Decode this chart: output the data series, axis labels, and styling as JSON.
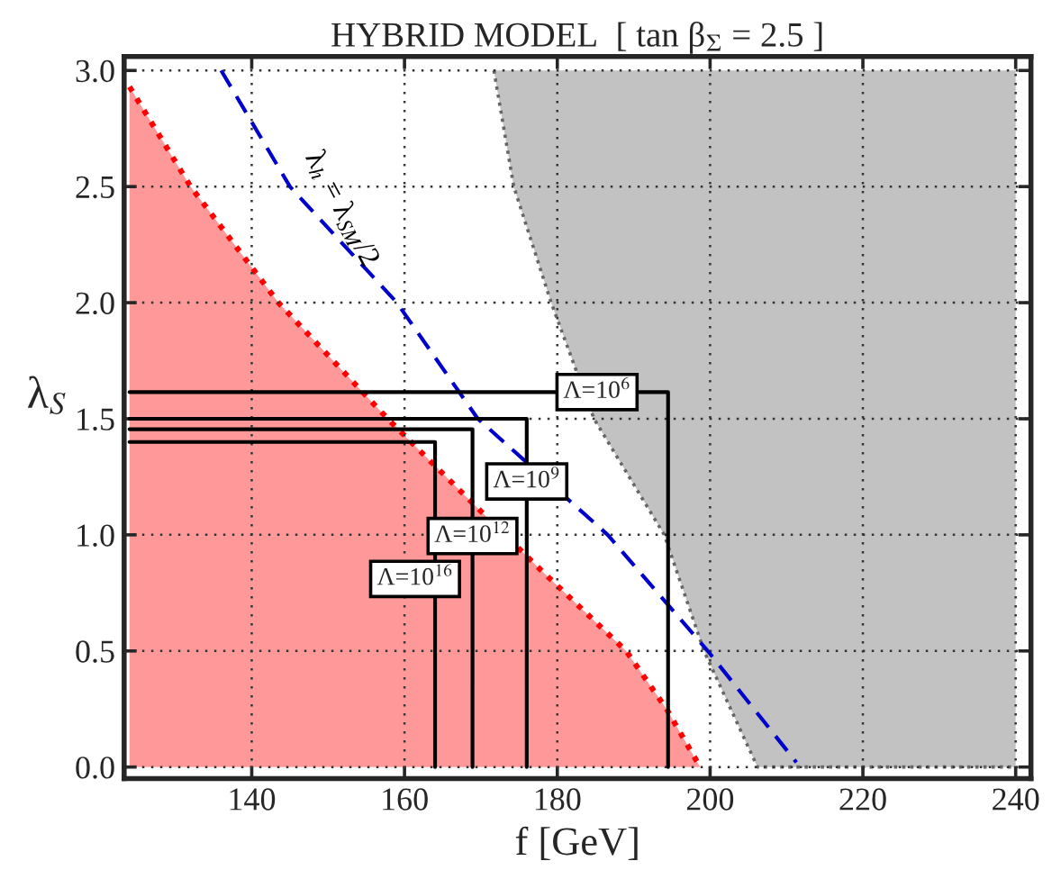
{
  "chart_data": {
    "type": "line",
    "title": "HYBRID MODEL  [ tan β$_{Σ}$ = 2.5 ]",
    "xlabel": "f [GeV]",
    "ylabel": "λ$_{S}$",
    "xlim": [
      123.3,
      242
    ],
    "ylim": [
      -0.05,
      3.06
    ],
    "xticks": [
      140,
      160,
      180,
      200,
      220,
      240
    ],
    "yticks": [
      {
        "value": 0,
        "label": "0.0"
      },
      {
        "value": 0.5,
        "label": "0.5"
      },
      {
        "value": 1,
        "label": "1.0"
      },
      {
        "value": 1.5,
        "label": "1.5"
      },
      {
        "value": 2,
        "label": "2.0"
      },
      {
        "value": 2.5,
        "label": "2.5"
      },
      {
        "value": 3,
        "label": "3.0"
      }
    ],
    "grid": true,
    "marker": "none",
    "series": [
      {
        "color": "#666666",
        "line_style": "dotted",
        "x": [
          171.7,
          174.3,
          179.2,
          184.8,
          194,
          199.2,
          206.2,
          240
        ],
        "values": [
          3,
          2.5,
          2,
          1.5,
          1,
          0.5,
          0,
          0
        ],
        "lower": [
          3,
          2.5,
          2,
          1.5,
          1,
          0.5,
          0,
          0
        ],
        "upper": [
          3,
          3,
          3,
          3,
          3,
          3,
          3,
          3
        ]
      },
      {
        "type": "area",
        "color": "#ff0000",
        "line_style": "dotted",
        "x": [
          124,
          132,
          143.5,
          157.8,
          168.5,
          177.8,
          189,
          194.3,
          198.7
        ],
        "values": [
          2.93,
          2.5,
          2,
          1.5,
          1.15,
          0.85,
          0.5,
          0.25,
          0
        ]
      },
      {
        "color": "#0000cc",
        "line_style": "dashed",
        "x": [
          136,
          145,
          159,
          169.6,
          186.6,
          199.7,
          211.3
        ],
        "values": [
          3,
          2.5,
          2,
          1.5,
          1,
          0.5,
          0.02
        ]
      },
      {
        "color": "#000000",
        "line_style": "solid",
        "x": [
          124,
          194.5,
          194.5
        ],
        "values": [
          1.615,
          1.615,
          0
        ]
      },
      {
        "color": "#000000",
        "line_style": "solid",
        "x": [
          124,
          176,
          176
        ],
        "values": [
          1.5,
          1.5,
          0
        ]
      },
      {
        "color": "#000000",
        "line_style": "solid",
        "x": [
          124,
          168.9,
          168.9
        ],
        "values": [
          1.455,
          1.455,
          0
        ]
      },
      {
        "color": "#000000",
        "line_style": "solid",
        "x": [
          124,
          164,
          164
        ],
        "values": [
          1.4,
          1.4,
          0
        ]
      }
    ],
    "annotations": [
      {
        "text": "λ$_{h}$ = λ$_{SM}$/2",
        "x": 148.4,
        "y": 2.38
      },
      {
        "text": "Λ=10$^{6}$",
        "x": 185.2,
        "y": 1.615
      },
      {
        "text": "Λ=10$^{9}$",
        "x": 176,
        "y": 1.23
      },
      {
        "text": "Λ=10$^{12}$",
        "x": 168.9,
        "y": 0.995
      },
      {
        "text": "Λ=10$^{16}$",
        "x": 164,
        "y": 0.81
      }
    ]
  }
}
